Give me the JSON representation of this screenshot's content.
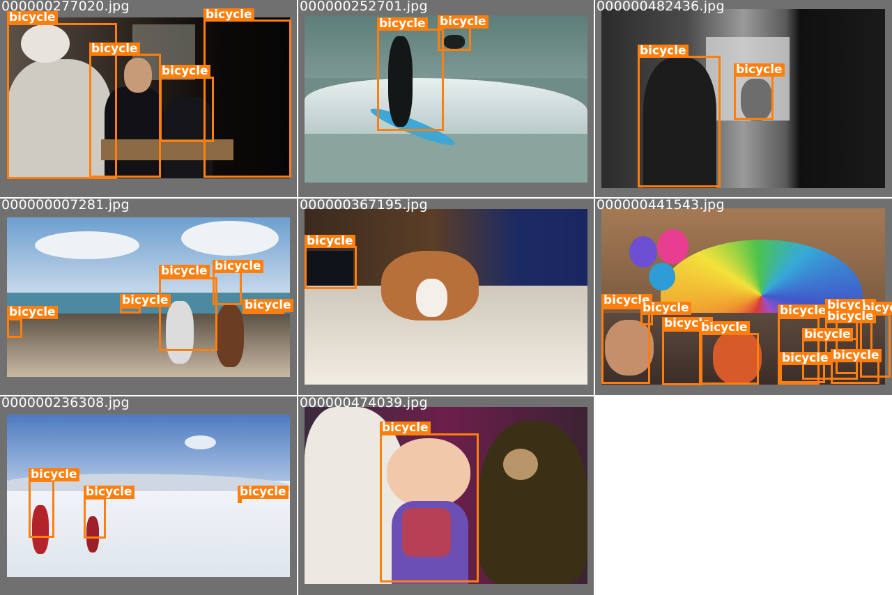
{
  "colors": {
    "box": "#ff7f0e",
    "cell_bg": "#707070",
    "page_bg": "#ffffff"
  },
  "tiles": [
    {
      "filename": "000000277020.jpg",
      "labels": [
        "bicycle",
        "bicycle",
        "bicycle",
        "bicycle"
      ]
    },
    {
      "filename": "000000252701.jpg",
      "labels": [
        "bicycle",
        "bicycle"
      ]
    },
    {
      "filename": "000000482436.jpg",
      "labels": [
        "bicycle",
        "bicycle"
      ]
    },
    {
      "filename": "000000007281.jpg",
      "labels": [
        "bicycle",
        "bicycle",
        "bicycle",
        "bicycle",
        "bicycle"
      ]
    },
    {
      "filename": "000000367195.jpg",
      "labels": [
        "bicycle"
      ]
    },
    {
      "filename": "000000441543.jpg",
      "labels": [
        "bicycle",
        "bicycle",
        "bicycle",
        "bicycle",
        "bicycle",
        "bicycle",
        "bicycle",
        "bicycle",
        "bicycle",
        "bicycle",
        "bicycle"
      ]
    },
    {
      "filename": "000000236308.jpg",
      "labels": [
        "bicycle",
        "bicycle",
        "bicycle"
      ]
    },
    {
      "filename": "000000474039.jpg",
      "labels": [
        "bicycle"
      ]
    }
  ]
}
